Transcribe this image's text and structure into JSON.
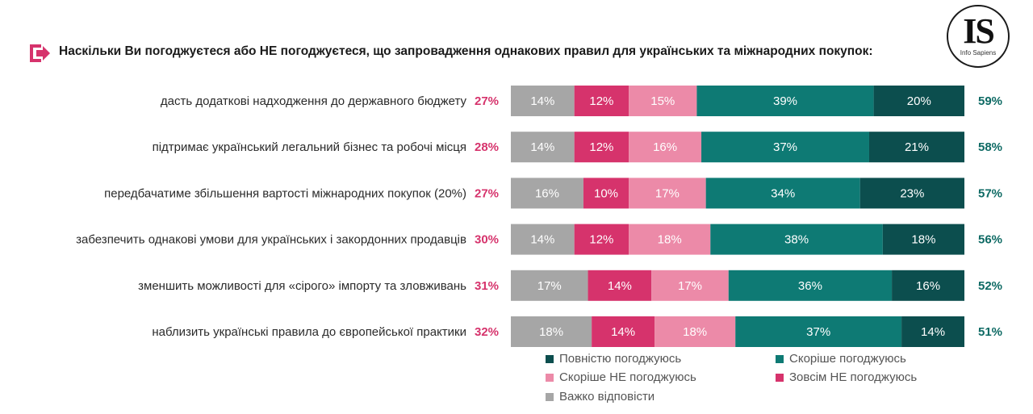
{
  "title": "Наскільки Ви погоджуєтеся або НЕ погоджуєтеся, що запровадження однакових правил для українських та міжнародних покупок:",
  "logo": {
    "letters": "IS",
    "subtitle": "Info Sapiens"
  },
  "colors": {
    "hard_to_say": "#a6a6a6",
    "strongly_disagree": "#d6336c",
    "somewhat_disagree": "#ec8aa8",
    "somewhat_agree": "#0e7a74",
    "fully_agree": "#0c4e4e",
    "disagree_total_text": "#d6336c",
    "agree_total_text": "#0e6a64",
    "accent": "#d6336c"
  },
  "chart_data": {
    "type": "bar",
    "orientation": "horizontal",
    "stacked": true,
    "categories": [
      "дасть додаткові надходження до державного бюджету",
      "підтримає український легальний бізнес та робочі місця",
      "передбачатиме збільшення вартості міжнародних покупок (20%)",
      "забезпечить однакові умови для українських і закордонних продавців",
      "зменшить можливості для «сірого» імпорту та зловживань",
      "наблизить українські правила до європейської практики"
    ],
    "series": [
      {
        "key": "hard_to_say",
        "name": "Важко відповісти",
        "values": [
          14,
          14,
          16,
          14,
          17,
          18
        ]
      },
      {
        "key": "strongly_disagree",
        "name": "Зовсім НЕ погоджуюсь",
        "values": [
          12,
          12,
          10,
          12,
          14,
          14
        ]
      },
      {
        "key": "somewhat_disagree",
        "name": "Скоріше НЕ погоджуюсь",
        "values": [
          15,
          16,
          17,
          18,
          17,
          18
        ]
      },
      {
        "key": "somewhat_agree",
        "name": "Скоріше погоджуюсь",
        "values": [
          39,
          37,
          34,
          38,
          36,
          37
        ]
      },
      {
        "key": "fully_agree",
        "name": "Повністю погоджуюсь",
        "values": [
          20,
          21,
          23,
          18,
          16,
          14
        ]
      }
    ],
    "disagree_totals": [
      "27%",
      "28%",
      "27%",
      "30%",
      "31%",
      "32%"
    ],
    "agree_totals": [
      "59%",
      "58%",
      "57%",
      "56%",
      "52%",
      "51%"
    ],
    "value_suffix": "%",
    "legend": {
      "position": "bottom-right",
      "items": [
        {
          "key": "fully_agree",
          "label": "Повністю погоджуюсь"
        },
        {
          "key": "somewhat_agree",
          "label": "Скоріше погоджуюсь"
        },
        {
          "key": "somewhat_disagree",
          "label": "Скоріше НЕ погоджуюсь"
        },
        {
          "key": "strongly_disagree",
          "label": "Зовсім НЕ погоджуюсь"
        },
        {
          "key": "hard_to_say",
          "label": "Важко відповісти"
        }
      ]
    },
    "grid": false
  }
}
